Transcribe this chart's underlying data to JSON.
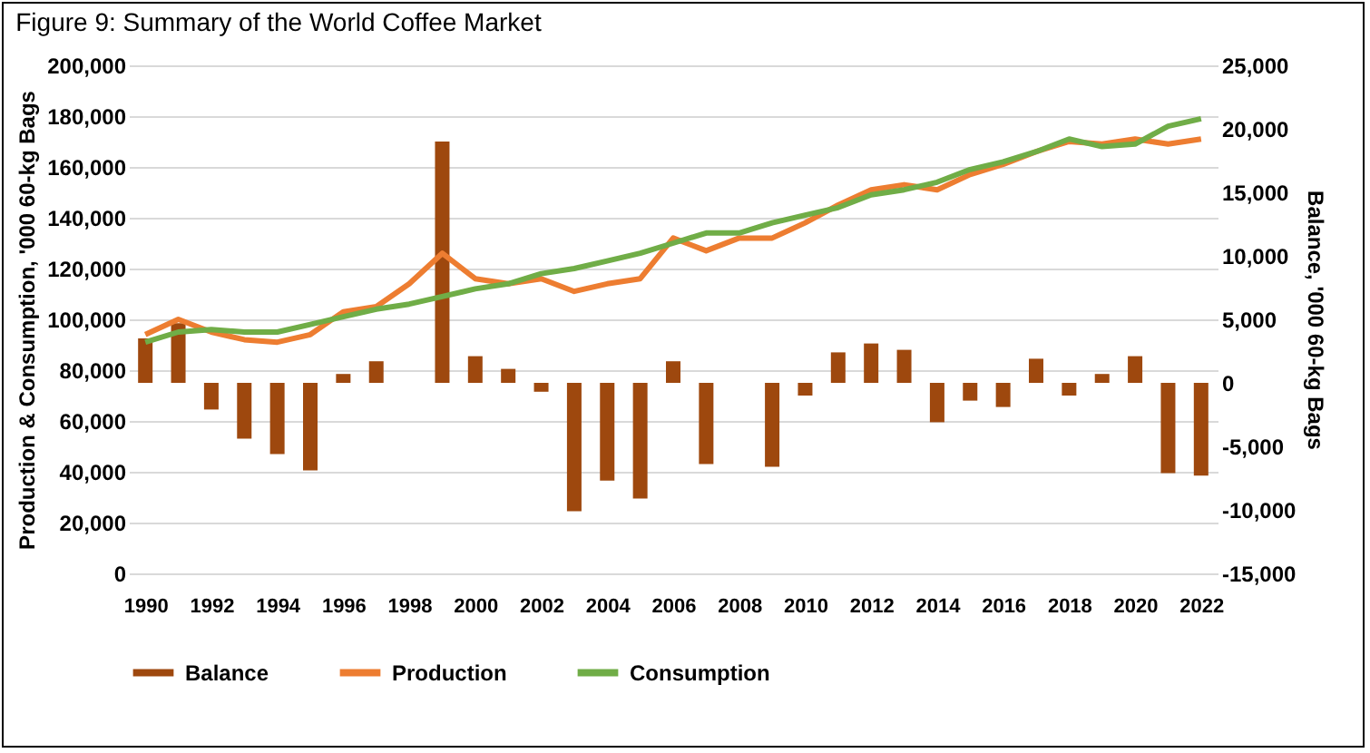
{
  "chart_data": {
    "type": "line",
    "title": "Figure 9: Summary of the World Coffee Market",
    "ylabel": "Production & Consumption, '000 60-kg Bags",
    "y2label": "Balance, '000 60-kg Bags",
    "x": [
      1990,
      1991,
      1992,
      1993,
      1994,
      1995,
      1996,
      1997,
      1998,
      1999,
      2000,
      2001,
      2002,
      2003,
      2004,
      2005,
      2006,
      2007,
      2008,
      2009,
      2010,
      2011,
      2012,
      2013,
      2014,
      2015,
      2016,
      2017,
      2018,
      2019,
      2020,
      2021,
      2022
    ],
    "series": [
      {
        "name": "Balance",
        "type": "bar",
        "axis": "y2",
        "color": "#9e480e",
        "values": [
          3500,
          4700,
          -2100,
          -4400,
          -5600,
          -6900,
          700,
          1700,
          null,
          19000,
          2100,
          1100,
          -700,
          -10100,
          -7700,
          -9100,
          1700,
          -6400,
          null,
          -6600,
          -1000,
          2400,
          3100,
          2600,
          -3100,
          -1400,
          -1900,
          1900,
          -1000,
          700,
          2100,
          -7100,
          -7300
        ]
      },
      {
        "name": "Production",
        "color": "#ed7d31",
        "values": [
          94000,
          100000,
          95000,
          92000,
          91000,
          94000,
          103000,
          105000,
          114000,
          126000,
          116000,
          114000,
          116000,
          111000,
          114000,
          116000,
          132000,
          127000,
          132000,
          132000,
          138000,
          145000,
          151000,
          153000,
          151000,
          157000,
          161000,
          166000,
          170000,
          169000,
          171000,
          169000,
          171000
        ]
      },
      {
        "name": "Consumption",
        "color": "#70ad47",
        "values": [
          91000,
          95000,
          96000,
          95000,
          95000,
          98000,
          101000,
          104000,
          106000,
          109000,
          112000,
          114000,
          118000,
          120000,
          123000,
          126000,
          130000,
          134000,
          134000,
          138000,
          141000,
          144000,
          149000,
          151000,
          154000,
          159000,
          162000,
          166000,
          171000,
          168000,
          169000,
          176000,
          179000
        ]
      }
    ],
    "xlim": [
      1989.5,
      2022.5
    ],
    "xticks": [
      1990,
      1992,
      1994,
      1996,
      1998,
      2000,
      2002,
      2004,
      2006,
      2008,
      2010,
      2012,
      2014,
      2016,
      2018,
      2020,
      2022
    ],
    "ylim": [
      0,
      200000
    ],
    "yticks": [
      0,
      {
        "value": 20000,
        "label": "20,000"
      },
      {
        "value": 40000,
        "label": "40,000"
      },
      {
        "value": 60000,
        "label": "60,000"
      },
      {
        "value": 80000,
        "label": "80,000"
      },
      {
        "value": 100000,
        "label": "100,000"
      },
      {
        "value": 120000,
        "label": "120,000"
      },
      {
        "value": 140000,
        "label": "140,000"
      },
      {
        "value": 160000,
        "label": "160,000"
      },
      {
        "value": 180000,
        "label": "180,000"
      },
      {
        "value": 200000,
        "label": "200,000"
      }
    ],
    "y2lim": [
      -15000,
      25000
    ],
    "y2ticks": [
      {
        "value": -15000,
        "label": "-15,000"
      },
      {
        "value": -10000,
        "label": "-10,000"
      },
      {
        "value": -5000,
        "label": "-5,000"
      },
      0,
      {
        "value": 5000,
        "label": "5,000"
      },
      {
        "value": 10000,
        "label": "10,000"
      },
      {
        "value": 15000,
        "label": "15,000"
      },
      {
        "value": 20000,
        "label": "20,000"
      },
      {
        "value": 25000,
        "label": "25,000"
      }
    ],
    "grid": "y",
    "legend": "bottom"
  }
}
